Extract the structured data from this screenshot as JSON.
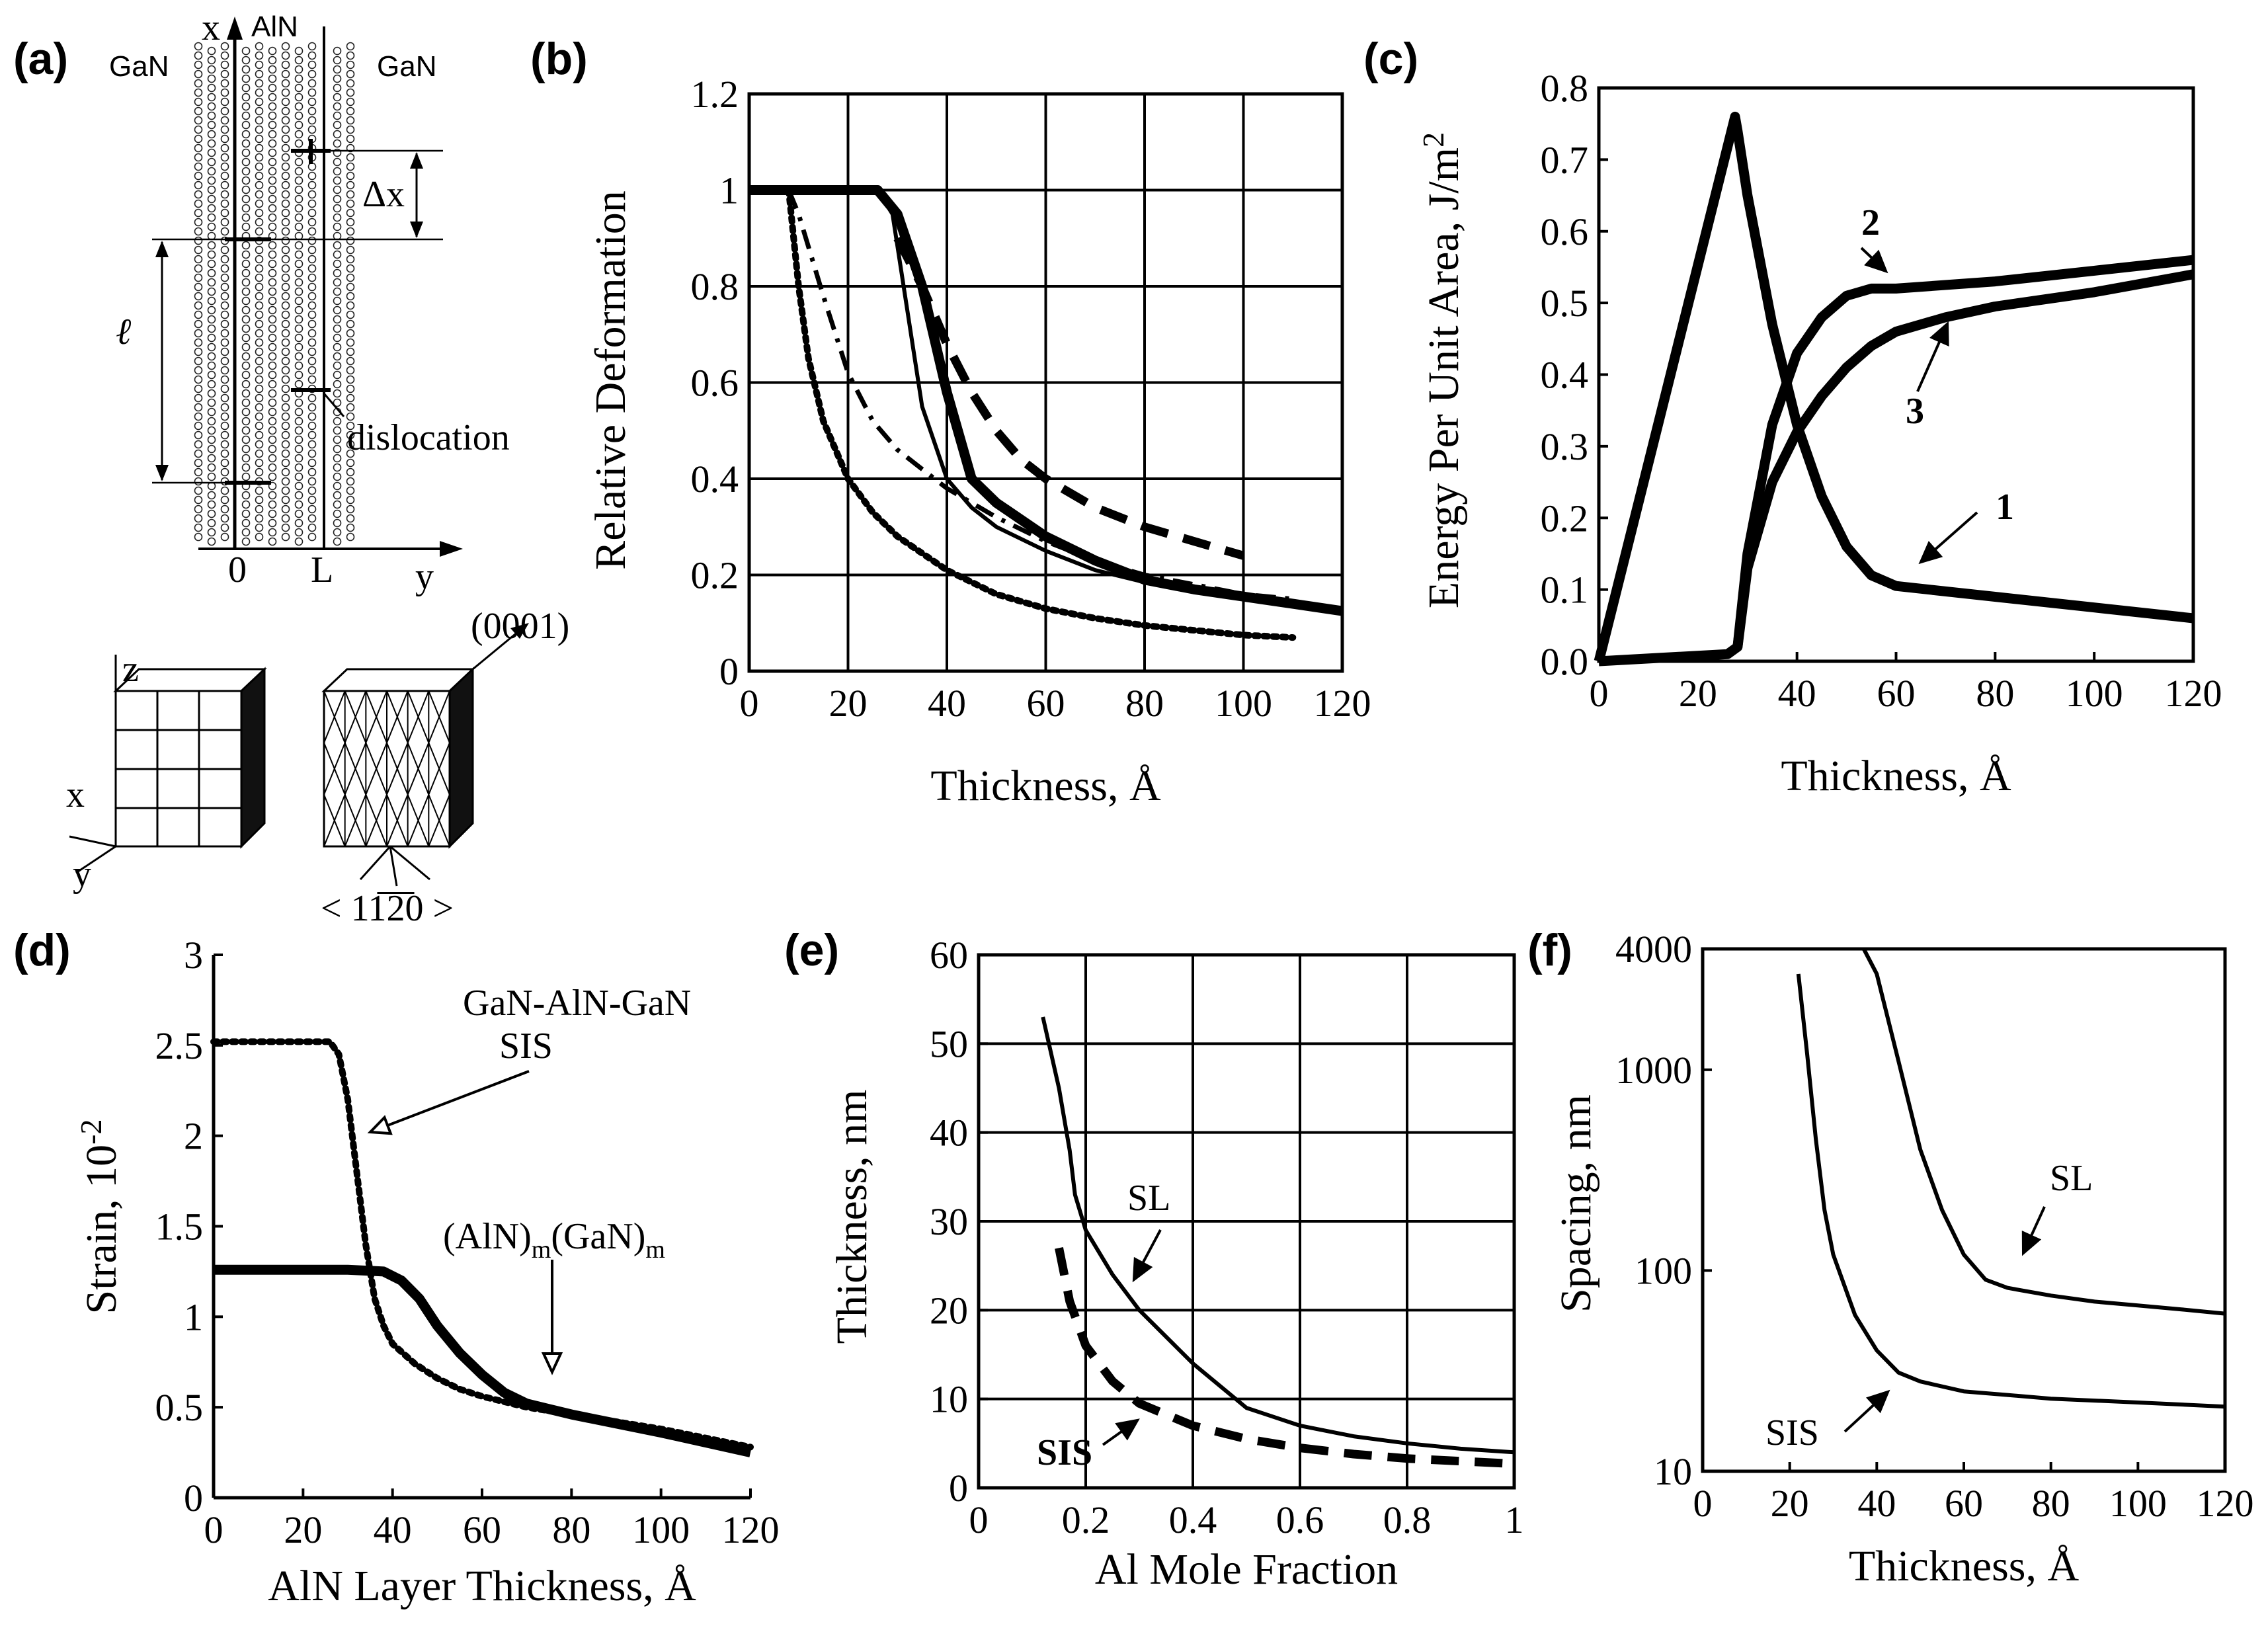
{
  "panel_labels": [
    "(a)",
    "(b)",
    "(c)",
    "(d)",
    "(e)",
    "(f)"
  ],
  "panel_a": {
    "left_label": "GaN",
    "right_label": "GaN",
    "middle_label": "AlN",
    "x_axis": "x",
    "y_axis": "y",
    "tick_0": "0",
    "tick_L": "L",
    "delta_x": "Δx",
    "ell": "ℓ",
    "dislocation": "dislocation",
    "cube_z": "z",
    "cube_x": "x",
    "cube_y": "y",
    "plane": "(0001)",
    "direction": "< 11̅2̅0 >"
  },
  "chart_data": [
    {
      "id": "b",
      "type": "line",
      "xlabel": "Thickness,  Å",
      "ylabel": "Relative Deformation",
      "xlim": [
        0,
        120
      ],
      "ylim": [
        0,
        1.2
      ],
      "xticks": [
        0,
        20,
        40,
        60,
        80,
        100,
        120
      ],
      "yticks": [
        0,
        0.2,
        0.4,
        0.6,
        0.8,
        1,
        1.2
      ],
      "ytick_labels": [
        "0",
        "0.2",
        "0.4",
        "0.6",
        "0.8",
        "1",
        "1.2"
      ],
      "grid": true,
      "series": [
        {
          "name": "thick solid",
          "style": "thick",
          "x": [
            0,
            26,
            30,
            35,
            40,
            45,
            50,
            60,
            70,
            80,
            90,
            100,
            110,
            120
          ],
          "y": [
            1,
            1,
            0.95,
            0.8,
            0.58,
            0.4,
            0.35,
            0.28,
            0.23,
            0.19,
            0.17,
            0.155,
            0.14,
            0.125
          ]
        },
        {
          "name": "thin solid",
          "style": "thin",
          "x": [
            0,
            26,
            29,
            32,
            35,
            40,
            45,
            50,
            60,
            70,
            80,
            90,
            100,
            110,
            120
          ],
          "y": [
            1,
            1,
            0.95,
            0.75,
            0.55,
            0.4,
            0.34,
            0.3,
            0.25,
            0.21,
            0.185,
            0.165,
            0.15,
            0.135,
            0.12
          ]
        },
        {
          "name": "thick dashed",
          "style": "dashed",
          "x": [
            30,
            35,
            40,
            45,
            50,
            55,
            60,
            70,
            80,
            90,
            100
          ],
          "y": [
            0.9,
            0.8,
            0.68,
            0.58,
            0.5,
            0.44,
            0.4,
            0.34,
            0.3,
            0.27,
            0.24
          ]
        },
        {
          "name": "dash-dot",
          "style": "dashdot",
          "x": [
            8,
            10,
            15,
            20,
            25,
            30,
            35,
            40,
            50,
            60,
            70,
            80,
            90,
            100,
            110
          ],
          "y": [
            1,
            0.95,
            0.78,
            0.62,
            0.52,
            0.46,
            0.42,
            0.38,
            0.32,
            0.27,
            0.23,
            0.2,
            0.18,
            0.16,
            0.15
          ]
        },
        {
          "name": "dotted",
          "style": "dotted",
          "x": [
            8,
            10,
            12,
            15,
            20,
            25,
            30,
            40,
            50,
            60,
            70,
            80,
            90,
            100,
            110
          ],
          "y": [
            1,
            0.8,
            0.65,
            0.52,
            0.4,
            0.33,
            0.28,
            0.21,
            0.16,
            0.13,
            0.11,
            0.095,
            0.085,
            0.075,
            0.07
          ]
        }
      ]
    },
    {
      "id": "c",
      "type": "line",
      "xlabel": "Thickness,  Å",
      "ylabel": "Energy Per Unit Area,  J/m",
      "ylabel_sup": "2",
      "xlim": [
        0,
        120
      ],
      "ylim": [
        0,
        0.8
      ],
      "xticks": [
        0,
        20,
        40,
        60,
        80,
        100,
        120
      ],
      "yticks": [
        0,
        0.1,
        0.2,
        0.3,
        0.4,
        0.5,
        0.6,
        0.7,
        0.8
      ],
      "ytick_labels": [
        "0.0",
        "0.1",
        "0.2",
        "0.3",
        "0.4",
        "0.5",
        "0.6",
        "0.7",
        "0.8"
      ],
      "grid": false,
      "annotations": [
        "1",
        "2",
        "3"
      ],
      "series": [
        {
          "name": "1",
          "style": "thick",
          "x": [
            0,
            27.5,
            28,
            30,
            35,
            40,
            45,
            50,
            55,
            60,
            80,
            100,
            120
          ],
          "y": [
            0,
            0.76,
            0.74,
            0.65,
            0.47,
            0.33,
            0.23,
            0.16,
            0.12,
            0.105,
            0.09,
            0.075,
            0.06
          ]
        },
        {
          "name": "2",
          "style": "thick",
          "x": [
            0,
            26,
            28,
            30,
            35,
            40,
            45,
            50,
            55,
            60,
            80,
            100,
            120
          ],
          "y": [
            0,
            0.01,
            0.02,
            0.15,
            0.33,
            0.43,
            0.48,
            0.51,
            0.52,
            0.52,
            0.53,
            0.545,
            0.56
          ]
        },
        {
          "name": "3",
          "style": "thick",
          "x": [
            28,
            30,
            35,
            40,
            45,
            50,
            55,
            60,
            70,
            80,
            100,
            120
          ],
          "y": [
            0.02,
            0.13,
            0.25,
            0.32,
            0.37,
            0.41,
            0.44,
            0.46,
            0.48,
            0.495,
            0.515,
            0.54
          ]
        }
      ]
    },
    {
      "id": "d",
      "type": "line",
      "xlabel": "AlN Layer Thickness, Å",
      "ylabel": "Strain, 10",
      "ylabel_sup": "-2",
      "xlim": [
        0,
        120
      ],
      "ylim": [
        0,
        3
      ],
      "xticks": [
        0,
        20,
        40,
        60,
        80,
        100,
        120
      ],
      "yticks": [
        0,
        0.5,
        1,
        1.5,
        2,
        2.5,
        3
      ],
      "ytick_labels": [
        "0",
        "0.5",
        "1",
        "1.5",
        "2",
        "2.5",
        "3"
      ],
      "grid": false,
      "annotations": [
        "GaN-AlN-GaN",
        "SIS",
        "(AlN)m(GaN)m"
      ],
      "series": [
        {
          "name": "GaN-AlN-GaN SIS",
          "style": "dotted",
          "x": [
            0,
            26,
            28,
            30,
            32,
            34,
            36,
            38,
            40,
            45,
            50,
            55,
            60,
            70,
            80,
            100,
            120
          ],
          "y": [
            2.52,
            2.52,
            2.45,
            2.2,
            1.8,
            1.4,
            1.1,
            0.95,
            0.85,
            0.74,
            0.66,
            0.6,
            0.56,
            0.5,
            0.46,
            0.38,
            0.28
          ]
        },
        {
          "name": "(AlN)m(GaN)m",
          "style": "thick",
          "x": [
            0,
            30,
            38,
            42,
            46,
            50,
            55,
            60,
            65,
            70,
            75,
            80,
            100,
            120
          ],
          "y": [
            1.26,
            1.26,
            1.25,
            1.2,
            1.1,
            0.95,
            0.8,
            0.68,
            0.58,
            0.52,
            0.49,
            0.46,
            0.36,
            0.25
          ]
        }
      ]
    },
    {
      "id": "e",
      "type": "line",
      "xlabel": "Al  Mole Fraction",
      "ylabel": "Thickness, nm",
      "xlim": [
        0,
        1
      ],
      "ylim": [
        0,
        60
      ],
      "xticks": [
        0,
        0.2,
        0.4,
        0.6,
        0.8,
        1
      ],
      "xtick_labels": [
        "0",
        "0.2",
        "0.4",
        "0.6",
        "0.8",
        "1"
      ],
      "yticks": [
        0,
        10,
        20,
        30,
        40,
        50,
        60
      ],
      "ytick_labels": [
        "0",
        "10",
        "20",
        "30",
        "40",
        "50",
        "60"
      ],
      "grid": true,
      "annotations": [
        "SL",
        "SIS"
      ],
      "series": [
        {
          "name": "SL",
          "style": "thin",
          "x": [
            0.12,
            0.15,
            0.17,
            0.18,
            0.2,
            0.25,
            0.3,
            0.4,
            0.5,
            0.6,
            0.7,
            0.8,
            0.9,
            1.0
          ],
          "y": [
            53,
            45,
            38,
            33,
            29,
            24,
            20,
            14,
            9,
            7,
            5.8,
            5,
            4.4,
            4
          ]
        },
        {
          "name": "SIS",
          "style": "dashed",
          "x": [
            0.15,
            0.17,
            0.2,
            0.25,
            0.3,
            0.4,
            0.5,
            0.6,
            0.7,
            0.8,
            0.9,
            1.0
          ],
          "y": [
            27,
            21,
            16,
            12,
            9.5,
            7,
            5.5,
            4.5,
            3.8,
            3.3,
            3,
            2.7
          ]
        }
      ]
    },
    {
      "id": "f",
      "type": "line",
      "xlabel": "Thickness,  Å",
      "ylabel": "Spacing, nm",
      "yscale": "log",
      "xlim": [
        0,
        120
      ],
      "ylim": [
        10,
        4000
      ],
      "xticks": [
        0,
        20,
        40,
        60,
        80,
        100,
        120
      ],
      "yticks": [
        10,
        100,
        1000,
        4000
      ],
      "ytick_labels": [
        "10",
        "100",
        "1000",
        "4000"
      ],
      "grid": false,
      "annotations": [
        "SL",
        "SIS"
      ],
      "series": [
        {
          "name": "SL",
          "style": "thin",
          "x": [
            37,
            40,
            45,
            50,
            55,
            60,
            65,
            70,
            80,
            90,
            100,
            110,
            120
          ],
          "y": [
            4000,
            3000,
            1100,
            400,
            200,
            120,
            90,
            82,
            75,
            70,
            67,
            64,
            61
          ]
        },
        {
          "name": "SIS",
          "style": "thin",
          "x": [
            22,
            24,
            26,
            28,
            30,
            35,
            40,
            45,
            50,
            60,
            70,
            80,
            100,
            120
          ],
          "y": [
            3000,
            1200,
            450,
            200,
            120,
            60,
            40,
            31,
            28,
            25,
            24,
            23,
            22,
            21
          ]
        }
      ]
    }
  ]
}
